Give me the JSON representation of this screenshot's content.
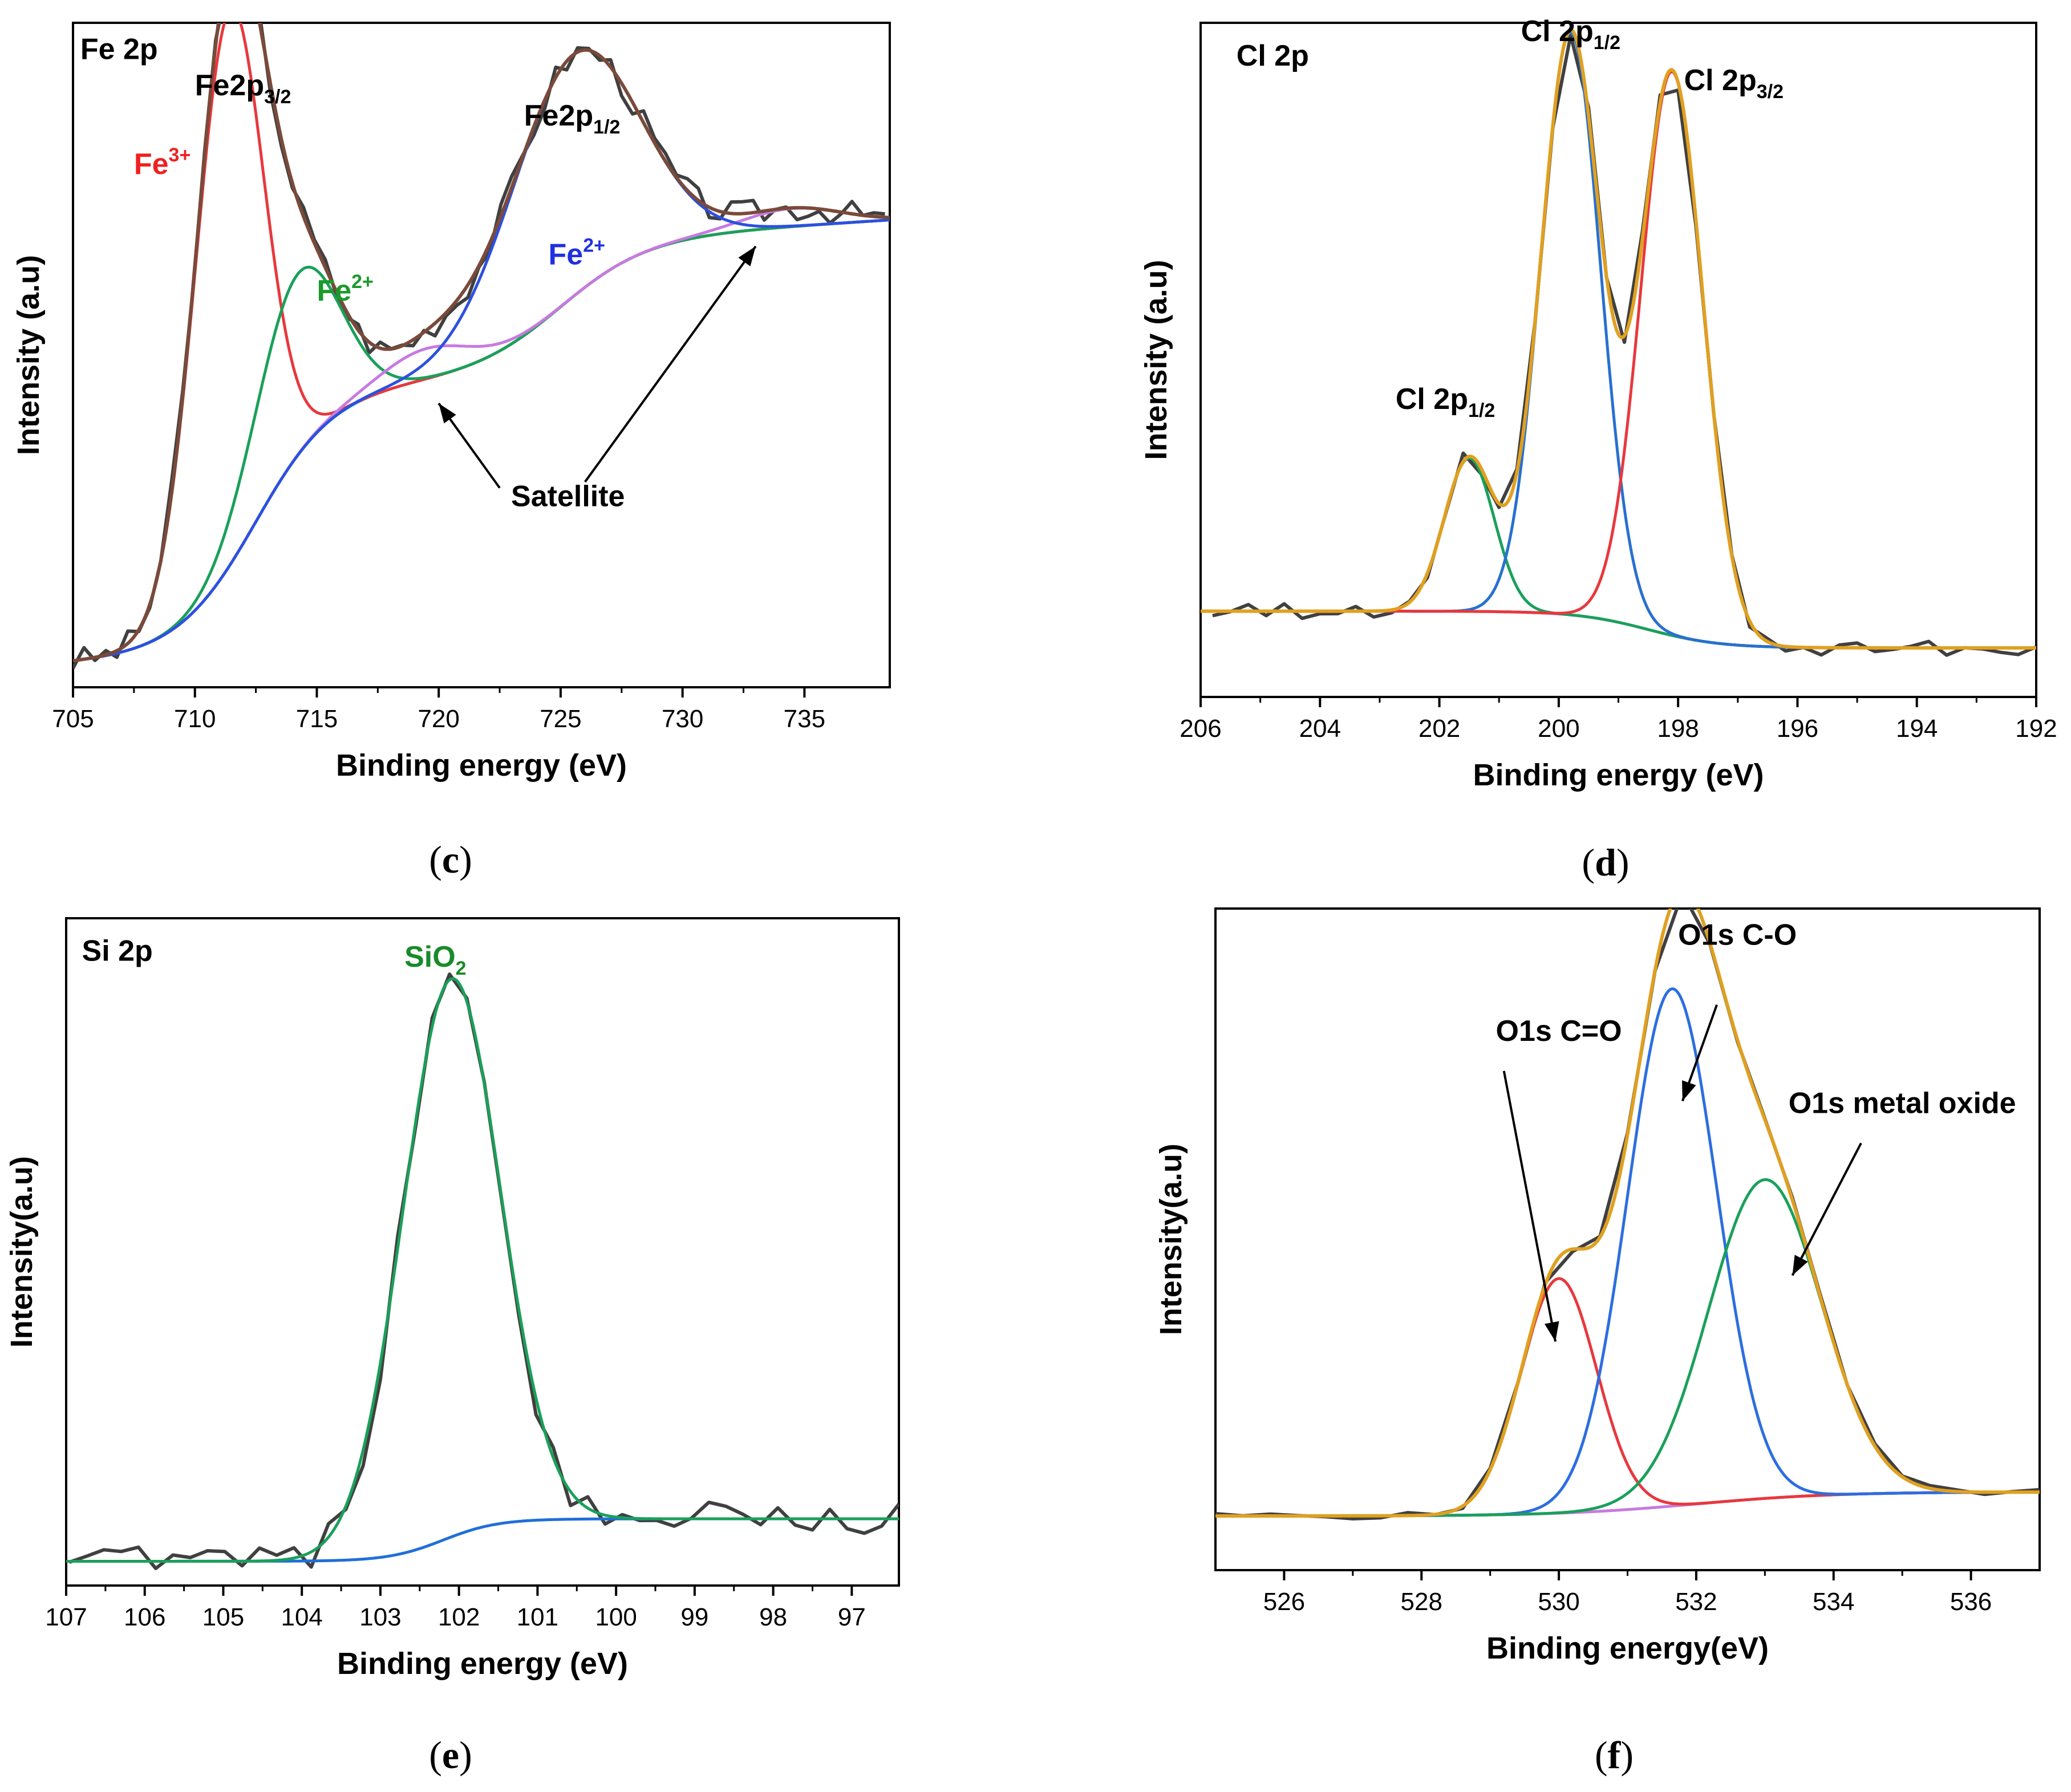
{
  "chart_data": [
    {
      "type": "line",
      "caption": "c",
      "title": "Fe 2p",
      "xlabel": "Binding energy (eV)",
      "ylabel": "Intensity (a.u)",
      "xlim": [
        705,
        738.5
      ],
      "ylim": [
        0,
        1.1
      ],
      "xticks": [
        705,
        710,
        715,
        720,
        725,
        730,
        735
      ],
      "xtick_labels": [
        "705",
        "710",
        "715",
        "720",
        "725",
        "730",
        "735"
      ],
      "x_reversed": false,
      "components": [
        {
          "name": "Fe3+",
          "color": "#e8383d",
          "peaks": [
            {
              "center": 711.4,
              "amp": 0.92,
              "width": 1.4
            }
          ]
        },
        {
          "name": "Fe2+ (2p3/2)",
          "color": "#1aa05a",
          "peaks": [
            {
              "center": 714.2,
              "amp": 0.3,
              "width": 1.7
            }
          ]
        },
        {
          "name": "Satellite",
          "color": "#c77ae0",
          "peaks": [
            {
              "center": 719.5,
              "amp": 0.05,
              "width": 1.8
            },
            {
              "center": 734.5,
              "amp": 0.03,
              "width": 2.0
            }
          ]
        },
        {
          "name": "Fe2+ (2p1/2)",
          "color": "#2c50e0",
          "peaks": [
            {
              "center": 725.5,
              "amp": 0.4,
              "width": 2.6
            }
          ]
        }
      ],
      "background": {
        "color": "#2bbfc6",
        "steps": [
          {
            "pos": 712.5,
            "height": 0.43,
            "width": 1.6
          },
          {
            "pos": 725.0,
            "height": 0.22,
            "width": 1.8
          }
        ],
        "slope": 0.0025
      },
      "envelope_color": "#7a4a3a",
      "raw": {
        "color": "#404040",
        "noise": 0.022,
        "step": 0.45,
        "seed": 3
      },
      "annotations": [
        {
          "text": "Fe 2p",
          "sub": "",
          "sup": "",
          "color": "#000000",
          "x": 705.3,
          "y": 1.04,
          "anchor": "start"
        },
        {
          "text": "Fe2p",
          "sub": "3/2",
          "sup": "",
          "color": "#000000",
          "x": 710.0,
          "y": 0.98,
          "anchor": "start"
        },
        {
          "text": "Fe",
          "sub": "",
          "sup": "3+",
          "color": "#f02020",
          "x": 707.5,
          "y": 0.85,
          "anchor": "start"
        },
        {
          "text": "Fe",
          "sub": "",
          "sup": "2+",
          "color": "#1a9a2a",
          "x": 715.0,
          "y": 0.64,
          "anchor": "start"
        },
        {
          "text": "Fe2p",
          "sub": "1/2",
          "sup": "",
          "color": "#000000",
          "x": 723.5,
          "y": 0.93,
          "anchor": "start"
        },
        {
          "text": "Fe",
          "sub": "",
          "sup": "2+",
          "color": "#2030e0",
          "x": 724.5,
          "y": 0.7,
          "anchor": "start"
        },
        {
          "text": "Satellite",
          "sub": "",
          "sup": "",
          "color": "#000000",
          "x": 725.3,
          "y": 0.3,
          "anchor": "middle"
        }
      ],
      "arrows": [
        {
          "from": [
            722.5,
            0.33
          ],
          "to": [
            720.0,
            0.47
          ]
        },
        {
          "from": [
            726.0,
            0.34
          ],
          "to": [
            733.0,
            0.73
          ]
        }
      ]
    },
    {
      "type": "line",
      "caption": "d",
      "title": "Cl 2p",
      "xlabel": "Binding energy (eV)",
      "ylabel": "Intensity (a.u)",
      "xlim": [
        192,
        206
      ],
      "ylim": [
        0,
        1.1
      ],
      "xticks": [
        206,
        204,
        202,
        200,
        198,
        196,
        194,
        192
      ],
      "xtick_labels": [
        "206",
        "204",
        "202",
        "200",
        "198",
        "196",
        "194",
        "192"
      ],
      "x_reversed": true,
      "components": [
        {
          "name": "Cl 2p1/2 (minor)",
          "color": "#1aa05a",
          "peaks": [
            {
              "center": 201.5,
              "amp": 0.25,
              "width": 0.42
            }
          ]
        },
        {
          "name": "Cl 2p1/2",
          "color": "#2870d0",
          "peaks": [
            {
              "center": 199.8,
              "amp": 0.95,
              "width": 0.5
            }
          ]
        },
        {
          "name": "Cl 2p3/2",
          "color": "#e8383d",
          "peaks": [
            {
              "center": 198.1,
              "amp": 0.92,
              "width": 0.52
            }
          ]
        }
      ],
      "background": {
        "color": "#c77ae0",
        "steps": [
          {
            "pos": 198.5,
            "height": -0.06,
            "width": 0.6
          }
        ],
        "slope": 0.0
      },
      "baseline": 0.14,
      "envelope_color": "#e0a020",
      "raw": {
        "color": "#404040",
        "noise": 0.014,
        "step": 0.3,
        "seed": 7
      },
      "annotations": [
        {
          "text": "Cl 2p",
          "sub": "",
          "sup": "",
          "color": "#000000",
          "x": 205.4,
          "y": 1.03,
          "anchor": "start"
        },
        {
          "text": "Cl 2p",
          "sub": "1/2",
          "sup": "",
          "color": "#000000",
          "x": 199.8,
          "y": 1.07,
          "anchor": "middle"
        },
        {
          "text": "Cl 2p",
          "sub": "3/2",
          "sup": "",
          "color": "#000000",
          "x": 197.9,
          "y": 0.99,
          "anchor": "start"
        },
        {
          "text": "Cl 2p",
          "sub": "1/2",
          "sup": "",
          "color": "#000000",
          "x": 201.9,
          "y": 0.47,
          "anchor": "middle"
        }
      ],
      "arrows": []
    },
    {
      "type": "line",
      "caption": "e",
      "title": "Si 2p",
      "xlabel": "Binding energy (eV)",
      "ylabel": "Intensity(a.u)",
      "xlim": [
        96.4,
        107
      ],
      "ylim": [
        0,
        1.1
      ],
      "xticks": [
        107,
        106,
        105,
        104,
        103,
        102,
        101,
        100,
        99,
        98,
        97
      ],
      "xtick_labels": [
        "107",
        "106",
        "105",
        "104",
        "103",
        "102",
        "101",
        "100",
        "99",
        "98",
        "97"
      ],
      "x_reversed": true,
      "components": [
        {
          "name": "SiO2",
          "color": "#1aa05a",
          "peaks": [
            {
              "center": 102.1,
              "amp": 0.92,
              "width": 0.62
            }
          ]
        }
      ],
      "background": {
        "color": "#1f6fd8",
        "steps": [
          {
            "pos": 102.2,
            "height": 0.07,
            "width": 0.35
          }
        ],
        "slope": 0.0
      },
      "baseline": 0.04,
      "envelope_color": "",
      "raw": {
        "color": "#404040",
        "noise": 0.03,
        "step": 0.22,
        "seed": 11
      },
      "annotations": [
        {
          "text": "Si 2p",
          "sub": "",
          "sup": "",
          "color": "#000000",
          "x": 106.8,
          "y": 1.03,
          "anchor": "start"
        },
        {
          "text": "SiO",
          "sub": "2",
          "sup": "",
          "color": "#1a8a2a",
          "x": 102.3,
          "y": 1.02,
          "anchor": "middle"
        }
      ],
      "arrows": []
    },
    {
      "type": "line",
      "caption": "f",
      "title": "",
      "xlabel": "Binding energy(eV)",
      "ylabel": "Intensity(a.u)",
      "xlim": [
        525,
        537
      ],
      "ylim": [
        0,
        1.1
      ],
      "xticks": [
        526,
        528,
        530,
        532,
        534,
        536
      ],
      "xtick_labels": [
        "526",
        "528",
        "530",
        "532",
        "534",
        "536"
      ],
      "x_reversed": false,
      "components": [
        {
          "name": "O1s C=O",
          "color": "#e8383d",
          "peaks": [
            {
              "center": 530.0,
              "amp": 0.39,
              "width": 0.55
            }
          ]
        },
        {
          "name": "O1s C-O",
          "color": "#2c6ee0",
          "peaks": [
            {
              "center": 531.65,
              "amp": 0.86,
              "width": 0.65
            }
          ]
        },
        {
          "name": "O1s metal oxide",
          "color": "#1aa05a",
          "peaks": [
            {
              "center": 533.0,
              "amp": 0.53,
              "width": 0.82
            }
          ]
        }
      ],
      "background": {
        "color": "#c77ae0",
        "steps": [
          {
            "pos": 532.0,
            "height": 0.04,
            "width": 1.0
          }
        ],
        "slope": 0.0
      },
      "baseline": 0.09,
      "envelope_color": "#e0a020",
      "raw": {
        "color": "#404040",
        "noise": 0.005,
        "step": 0.4,
        "seed": 5
      },
      "annotations": [
        {
          "text": "O1s C-O",
          "sub": "",
          "sup": "",
          "color": "#000000",
          "x": 532.6,
          "y": 1.04,
          "anchor": "middle"
        },
        {
          "text": "O1s C=O",
          "sub": "",
          "sup": "",
          "color": "#000000",
          "x": 530.0,
          "y": 0.88,
          "anchor": "middle"
        },
        {
          "text": "O1s metal oxide",
          "sub": "",
          "sup": "",
          "color": "#000000",
          "x": 535.0,
          "y": 0.76,
          "anchor": "middle"
        }
      ],
      "arrows": [
        {
          "from": [
            532.3,
            0.94
          ],
          "to": [
            531.8,
            0.78
          ]
        },
        {
          "from": [
            529.2,
            0.83
          ],
          "to": [
            529.95,
            0.38
          ]
        },
        {
          "from": [
            534.4,
            0.71
          ],
          "to": [
            533.4,
            0.49
          ]
        }
      ]
    }
  ]
}
